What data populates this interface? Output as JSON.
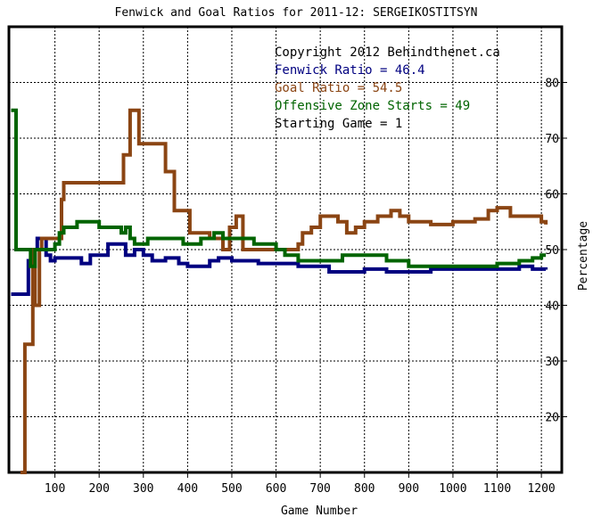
{
  "chart_data": {
    "type": "line",
    "title": "Fenwick and Goal Ratios for 2011-12: SERGEIKOSTITSYN",
    "xlabel": "Game Number",
    "ylabel": "Percentage",
    "xlim": [
      0,
      1230
    ],
    "ylim": [
      10,
      90
    ],
    "x_ticks": [
      100,
      200,
      300,
      400,
      500,
      600,
      700,
      800,
      900,
      1000,
      1100,
      1200
    ],
    "y_ticks": [
      20,
      30,
      40,
      50,
      60,
      70,
      80
    ],
    "grid": true,
    "annotations": [
      {
        "text": "Copyright 2012 Behindthenet.ca",
        "color": "#000000"
      },
      {
        "text": "Fenwick Ratio = 46.4",
        "color": "#000080"
      },
      {
        "text": "Goal Ratio = 54.5",
        "color": "#8b4513"
      },
      {
        "text": "Offensive Zone Starts = 49",
        "color": "#006400"
      },
      {
        "text": "Starting Game = 1",
        "color": "#000000"
      }
    ],
    "series": [
      {
        "color": "#000080",
        "points": [
          [
            1,
            42
          ],
          [
            35,
            42
          ],
          [
            40,
            48
          ],
          [
            50,
            48
          ],
          [
            52,
            50
          ],
          [
            60,
            52
          ],
          [
            80,
            49
          ],
          [
            90,
            48
          ],
          [
            100,
            48.5
          ],
          [
            150,
            48.5
          ],
          [
            160,
            47.5
          ],
          [
            180,
            49
          ],
          [
            200,
            49
          ],
          [
            220,
            51
          ],
          [
            250,
            51
          ],
          [
            260,
            49
          ],
          [
            280,
            50
          ],
          [
            300,
            49
          ],
          [
            320,
            48
          ],
          [
            350,
            48.5
          ],
          [
            380,
            47.5
          ],
          [
            400,
            47
          ],
          [
            450,
            48
          ],
          [
            470,
            48.5
          ],
          [
            500,
            48
          ],
          [
            550,
            48
          ],
          [
            560,
            47.5
          ],
          [
            600,
            47.5
          ],
          [
            650,
            47
          ],
          [
            700,
            47
          ],
          [
            720,
            46
          ],
          [
            750,
            46
          ],
          [
            800,
            46.5
          ],
          [
            850,
            46
          ],
          [
            900,
            46
          ],
          [
            950,
            46.5
          ],
          [
            1000,
            46.5
          ],
          [
            1050,
            46.5
          ],
          [
            1100,
            46.5
          ],
          [
            1150,
            47
          ],
          [
            1180,
            46.5
          ],
          [
            1210,
            46.4
          ]
        ]
      },
      {
        "color": "#8b4513",
        "points": [
          [
            22,
            10
          ],
          [
            30,
            10
          ],
          [
            32,
            33
          ],
          [
            45,
            33
          ],
          [
            50,
            50
          ],
          [
            55,
            40
          ],
          [
            60,
            40
          ],
          [
            65,
            50
          ],
          [
            70,
            52
          ],
          [
            110,
            52
          ],
          [
            115,
            59
          ],
          [
            120,
            62
          ],
          [
            160,
            62
          ],
          [
            200,
            62
          ],
          [
            250,
            62
          ],
          [
            255,
            67
          ],
          [
            260,
            67
          ],
          [
            270,
            75
          ],
          [
            280,
            75
          ],
          [
            290,
            69
          ],
          [
            340,
            69
          ],
          [
            350,
            64
          ],
          [
            365,
            64
          ],
          [
            370,
            57
          ],
          [
            400,
            57
          ],
          [
            405,
            53
          ],
          [
            440,
            53
          ],
          [
            450,
            52
          ],
          [
            470,
            52
          ],
          [
            480,
            50
          ],
          [
            490,
            50
          ],
          [
            495,
            54
          ],
          [
            500,
            54
          ],
          [
            510,
            56
          ],
          [
            520,
            56
          ],
          [
            525,
            50
          ],
          [
            570,
            50
          ],
          [
            600,
            50
          ],
          [
            620,
            50
          ],
          [
            650,
            51
          ],
          [
            660,
            53
          ],
          [
            680,
            54
          ],
          [
            700,
            56
          ],
          [
            720,
            56
          ],
          [
            740,
            55
          ],
          [
            760,
            53
          ],
          [
            780,
            54
          ],
          [
            800,
            55
          ],
          [
            830,
            56
          ],
          [
            860,
            57
          ],
          [
            880,
            56
          ],
          [
            900,
            55
          ],
          [
            950,
            54.5
          ],
          [
            1000,
            55
          ],
          [
            1050,
            55.5
          ],
          [
            1080,
            57
          ],
          [
            1100,
            57.5
          ],
          [
            1130,
            56
          ],
          [
            1160,
            56
          ],
          [
            1200,
            55
          ],
          [
            1210,
            54.5
          ]
        ]
      },
      {
        "color": "#006400",
        "points": [
          [
            1,
            75
          ],
          [
            10,
            75
          ],
          [
            12,
            50
          ],
          [
            40,
            50
          ],
          [
            45,
            47
          ],
          [
            50,
            47
          ],
          [
            55,
            50
          ],
          [
            90,
            50
          ],
          [
            100,
            51
          ],
          [
            110,
            53
          ],
          [
            120,
            54
          ],
          [
            150,
            55
          ],
          [
            180,
            55
          ],
          [
            200,
            54
          ],
          [
            250,
            53
          ],
          [
            260,
            54
          ],
          [
            270,
            52
          ],
          [
            280,
            51
          ],
          [
            300,
            51
          ],
          [
            310,
            52
          ],
          [
            350,
            52
          ],
          [
            380,
            52
          ],
          [
            390,
            51
          ],
          [
            400,
            51
          ],
          [
            430,
            52
          ],
          [
            460,
            53
          ],
          [
            480,
            52
          ],
          [
            500,
            52
          ],
          [
            520,
            52
          ],
          [
            550,
            51
          ],
          [
            570,
            51
          ],
          [
            600,
            50
          ],
          [
            620,
            49
          ],
          [
            650,
            48
          ],
          [
            700,
            48
          ],
          [
            750,
            49
          ],
          [
            800,
            49
          ],
          [
            850,
            48
          ],
          [
            900,
            47
          ],
          [
            950,
            47
          ],
          [
            1000,
            47
          ],
          [
            1050,
            47
          ],
          [
            1100,
            47.5
          ],
          [
            1150,
            48
          ],
          [
            1180,
            48.5
          ],
          [
            1200,
            49
          ],
          [
            1210,
            49
          ]
        ]
      }
    ]
  }
}
